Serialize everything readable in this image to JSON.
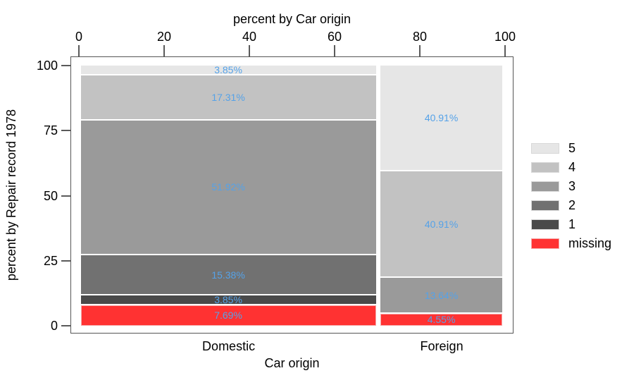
{
  "chart_data": {
    "type": "mosaic",
    "top_axis": {
      "title": "percent by Car origin",
      "ticks": [
        0,
        20,
        40,
        60,
        80,
        100
      ],
      "range": [
        0,
        100
      ]
    },
    "left_axis": {
      "title": "percent by Repair record 1978",
      "ticks": [
        0,
        25,
        50,
        75,
        100
      ],
      "range": [
        0,
        100
      ]
    },
    "bottom_axis": {
      "title": "Car origin",
      "categories": [
        "Domestic",
        "Foreign"
      ]
    },
    "grid": false,
    "segments_ordered": "bottom-to-top",
    "columns": [
      {
        "category": "Domestic",
        "width_pct": 70.27,
        "segments": [
          {
            "repair_record": "missing",
            "value_pct": 7.69,
            "label": "7.69%"
          },
          {
            "repair_record": "1",
            "value_pct": 3.85,
            "label": "3.85%"
          },
          {
            "repair_record": "2",
            "value_pct": 15.38,
            "label": "15.38%"
          },
          {
            "repair_record": "3",
            "value_pct": 51.92,
            "label": "51.92%"
          },
          {
            "repair_record": "4",
            "value_pct": 17.31,
            "label": "17.31%"
          },
          {
            "repair_record": "5",
            "value_pct": 3.85,
            "label": "3.85%"
          }
        ]
      },
      {
        "category": "Foreign",
        "width_pct": 29.73,
        "segments": [
          {
            "repair_record": "missing",
            "value_pct": 4.55,
            "label": "4.55%"
          },
          {
            "repair_record": "3",
            "value_pct": 13.64,
            "label": "13.64%"
          },
          {
            "repair_record": "4",
            "value_pct": 40.91,
            "label": "40.91%"
          },
          {
            "repair_record": "5",
            "value_pct": 40.91,
            "label": "40.91%"
          }
        ]
      }
    ],
    "legend": {
      "position": "right",
      "entries": [
        {
          "label": "5",
          "color": "#e6e6e6"
        },
        {
          "label": "4",
          "color": "#c2c2c2"
        },
        {
          "label": "3",
          "color": "#9a9a9a"
        },
        {
          "label": "2",
          "color": "#717171"
        },
        {
          "label": "1",
          "color": "#4a4a4a"
        },
        {
          "label": "missing",
          "color": "#ff3232"
        }
      ]
    },
    "colors": {
      "5": "#e6e6e6",
      "4": "#c2c2c2",
      "3": "#9a9a9a",
      "2": "#717171",
      "1": "#4a4a4a",
      "missing": "#ff3232",
      "label_text": "#55a2e8",
      "axis_line": "#565656",
      "missing_outline": "#f5a9a9"
    }
  }
}
